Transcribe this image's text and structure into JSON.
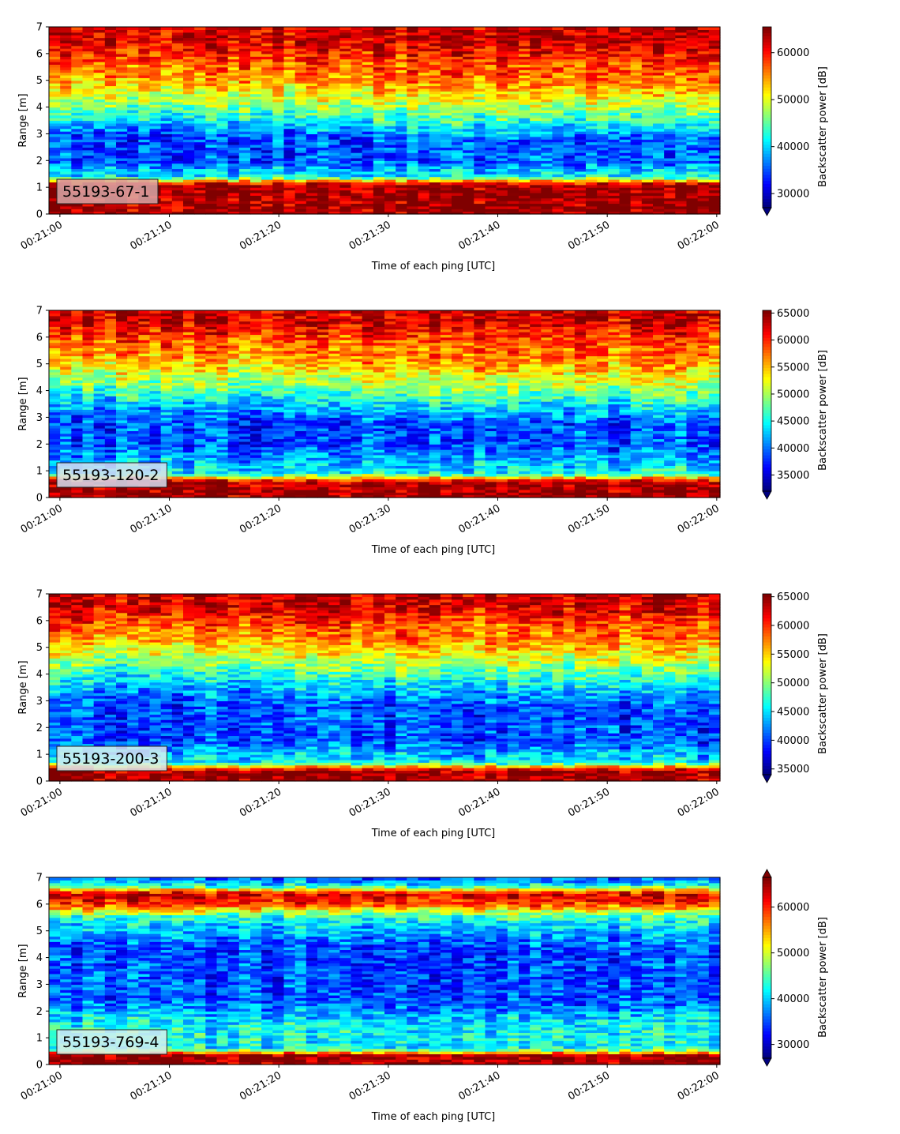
{
  "chart_data": [
    {
      "type": "heatmap",
      "label": "55193-67-1",
      "label_bg": "#d8a8a8",
      "xlabel": "Time of each ping [UTC]",
      "ylabel": "Range [m]",
      "xticks": [
        "00:21:00",
        "00:21:10",
        "00:21:20",
        "00:21:30",
        "00:21:40",
        "00:21:50",
        "00:22:00"
      ],
      "xlim_seconds": [
        -1,
        60.3
      ],
      "ylim": [
        0,
        7
      ],
      "yticks": [
        0,
        1,
        2,
        3,
        4,
        5,
        6,
        7
      ],
      "colorbar": {
        "label": "Backscatter power [dB]",
        "ticks": [
          30000,
          40000,
          50000,
          60000
        ],
        "range": [
          27000,
          65500
        ],
        "extend": "min"
      },
      "profile": [
        [
          0.0,
          "surf"
        ],
        [
          0.2,
          "surf"
        ],
        [
          1.1,
          "surf"
        ],
        [
          1.4,
          "cyan"
        ],
        [
          2.0,
          "blue"
        ],
        [
          3.0,
          "blue"
        ],
        [
          3.6,
          "cyan"
        ],
        [
          4.3,
          "lime"
        ],
        [
          5.0,
          "orange"
        ],
        [
          5.8,
          "red"
        ],
        [
          6.5,
          "dark"
        ],
        [
          7.0,
          "dark"
        ]
      ],
      "drift": 0.4
    },
    {
      "type": "heatmap",
      "label": "55193-120-2",
      "label_bg": "#d6dff2",
      "xlabel": "Time of each ping [UTC]",
      "ylabel": "Range [m]",
      "xticks": [
        "00:21:00",
        "00:21:10",
        "00:21:20",
        "00:21:30",
        "00:21:40",
        "00:21:50",
        "00:22:00"
      ],
      "xlim_seconds": [
        -1,
        60.3
      ],
      "ylim": [
        0,
        7
      ],
      "yticks": [
        0,
        1,
        2,
        3,
        4,
        5,
        6,
        7
      ],
      "colorbar": {
        "label": "Backscatter power [dB]",
        "ticks": [
          35000,
          40000,
          45000,
          50000,
          55000,
          60000,
          65000
        ],
        "range": [
          32000,
          65500
        ],
        "extend": "min"
      },
      "profile": [
        [
          0.0,
          "surf"
        ],
        [
          0.15,
          "surf"
        ],
        [
          0.6,
          "surf"
        ],
        [
          0.9,
          "cyan"
        ],
        [
          2.0,
          "blue"
        ],
        [
          3.0,
          "blue"
        ],
        [
          3.8,
          "cyan"
        ],
        [
          4.5,
          "lime"
        ],
        [
          5.2,
          "orange"
        ],
        [
          6.0,
          "red"
        ],
        [
          6.6,
          "dark"
        ],
        [
          7.0,
          "dark"
        ]
      ],
      "drift": 0.5
    },
    {
      "type": "heatmap",
      "label": "55193-200-3",
      "label_bg": "#d8ecf0",
      "xlabel": "Time of each ping [UTC]",
      "ylabel": "Range [m]",
      "xticks": [
        "00:21:00",
        "00:21:10",
        "00:21:20",
        "00:21:30",
        "00:21:40",
        "00:21:50",
        "00:22:00"
      ],
      "xlim_seconds": [
        -1,
        60.3
      ],
      "ylim": [
        0,
        7
      ],
      "yticks": [
        0,
        1,
        2,
        3,
        4,
        5,
        6,
        7
      ],
      "colorbar": {
        "label": "Backscatter power [dB]",
        "ticks": [
          35000,
          40000,
          45000,
          50000,
          55000,
          60000,
          65000
        ],
        "range": [
          34000,
          65500
        ],
        "extend": "min"
      },
      "profile": [
        [
          0.0,
          "surf"
        ],
        [
          0.1,
          "surf"
        ],
        [
          0.4,
          "surf"
        ],
        [
          0.7,
          "cyan"
        ],
        [
          1.5,
          "blue"
        ],
        [
          3.0,
          "blue"
        ],
        [
          4.0,
          "cyan"
        ],
        [
          4.7,
          "lime"
        ],
        [
          5.3,
          "orange"
        ],
        [
          6.0,
          "red"
        ],
        [
          6.6,
          "dark"
        ],
        [
          7.0,
          "dark"
        ]
      ],
      "drift": 0.5
    },
    {
      "type": "heatmap",
      "label": "55193-769-4",
      "label_bg": "#d6eef0",
      "xlabel": "Time of each ping [UTC]",
      "ylabel": "Range [m]",
      "xticks": [
        "00:21:00",
        "00:21:10",
        "00:21:20",
        "00:21:30",
        "00:21:40",
        "00:21:50",
        "00:22:00"
      ],
      "xlim_seconds": [
        -1,
        60.3
      ],
      "ylim": [
        0,
        7
      ],
      "yticks": [
        0,
        1,
        2,
        3,
        4,
        5,
        6,
        7
      ],
      "colorbar": {
        "label": "Backscatter power [dB]",
        "ticks": [
          30000,
          40000,
          50000,
          60000
        ],
        "range": [
          27000,
          66500
        ],
        "extend": "both"
      },
      "profile": [
        [
          0.0,
          "surf"
        ],
        [
          0.1,
          "surf"
        ],
        [
          0.35,
          "surf"
        ],
        [
          0.6,
          "cyan"
        ],
        [
          1.5,
          "cyan"
        ],
        [
          2.5,
          "blue"
        ],
        [
          4.5,
          "blue"
        ],
        [
          5.5,
          "cyan"
        ],
        [
          6.0,
          "red"
        ],
        [
          6.4,
          "dark"
        ],
        [
          6.7,
          "cyan"
        ],
        [
          7.0,
          "blue"
        ]
      ],
      "drift": 0.2
    }
  ]
}
